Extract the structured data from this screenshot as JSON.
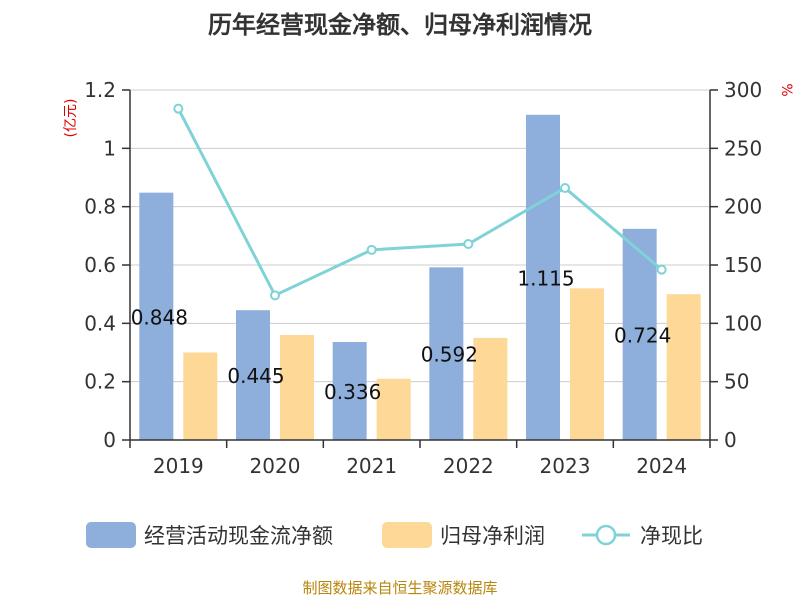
{
  "chart_data": {
    "type": "bar",
    "title": "历年经营现金净额、归母净利润情况",
    "categories": [
      "2019",
      "2020",
      "2021",
      "2022",
      "2023",
      "2024"
    ],
    "left_axis": {
      "unit": "(亿元)",
      "ylim": [
        0,
        1.2
      ],
      "ticks": [
        "0",
        "0.2",
        "0.4",
        "0.6",
        "0.8",
        "1",
        "1.2"
      ]
    },
    "right_axis": {
      "unit": "%",
      "ylim": [
        0,
        300
      ],
      "ticks": [
        "0",
        "50",
        "100",
        "150",
        "200",
        "250",
        "300"
      ]
    },
    "series": [
      {
        "name": "经营活动现金流净额",
        "kind": "bar",
        "axis": "left",
        "color": "#8eaedb",
        "values": [
          0.848,
          0.445,
          0.336,
          0.592,
          1.115,
          0.724
        ],
        "labels": [
          "0.848",
          "0.445",
          "0.336",
          "0.592",
          "1.115",
          "0.724"
        ]
      },
      {
        "name": "归母净利润",
        "kind": "bar",
        "axis": "left",
        "color": "#fdd896",
        "values": [
          0.3,
          0.36,
          0.21,
          0.35,
          0.52,
          0.5
        ]
      },
      {
        "name": "净现比",
        "kind": "line",
        "axis": "right",
        "color": "#7fd3d6",
        "values": [
          284,
          124,
          163,
          168,
          216,
          146
        ]
      }
    ],
    "grid": true,
    "legend_position": "bottom"
  },
  "source_note": "制图数据来自恒生聚源数据库"
}
